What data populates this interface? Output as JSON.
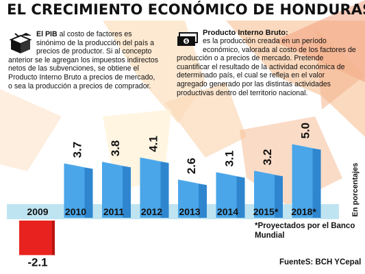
{
  "title": "EL CRECIMIENTO ECONÓMICO DE HONDURAS",
  "pib_box": {
    "term": "El PIB",
    "text": " al costo de factores es sinónimo de la producción del país a precios de productor. Si al concepto anterior se le agregan los impuestos indirectos netos de las subvenciones, se obtiene el Producto Interno Bruto a precios de mercado, o sea la producción a precios de comprador."
  },
  "pibi_box": {
    "term": "Producto Interno Bruto:",
    "text": "es la producción creada en un período económico, valorada al costo de los factores de producción o a precios de mercado. Pretende cuantificar el resultado de la actividad económica de determinado país, el cual se refleja en el valor agregado generado por las distintas actividades productivas dentro del territorio nacional."
  },
  "footnote": "*Proyectados por el Banco Mundial",
  "source": "FuenteS: BCH YCepal",
  "chart_data": {
    "type": "bar",
    "categories": [
      "2009",
      "2010",
      "2011",
      "2012",
      "2013",
      "2014",
      "2015*",
      "2018*"
    ],
    "values": [
      -2.1,
      3.7,
      3.8,
      4.1,
      2.6,
      3.1,
      3.2,
      5.0
    ],
    "value_labels": [
      "-2.1",
      "3.7",
      "3.8",
      "4.1",
      "2.6",
      "3.1",
      "3.2",
      "5.0"
    ],
    "ylabel": "En porcentajes",
    "colors": {
      "positive": "#4aa6e8",
      "negative": "#e8231f",
      "axis_band": "#bfe4f1"
    }
  }
}
